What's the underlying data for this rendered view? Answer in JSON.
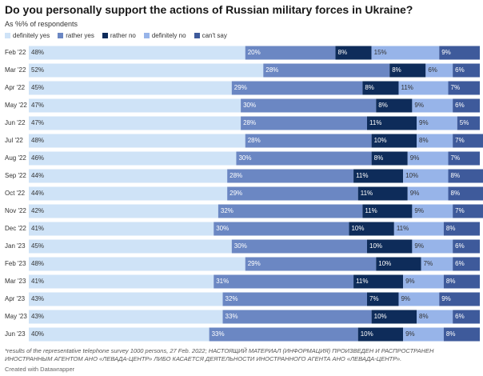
{
  "chart_data": {
    "type": "stacked-bar-horizontal",
    "title": "Do you personally support the actions of Russian military forces in Ukraine?",
    "subtitle": "As %% of respondents",
    "categories": [
      "Feb '22",
      "Mar '22",
      "Apr '22",
      "May '22",
      "Jun '22",
      "Jul '22",
      "Aug '22",
      "Sep '22",
      "Oct '22",
      "Nov '22",
      "Dec '22",
      "Jan '23",
      "Feb '23",
      "Mar '23",
      "Apr '23",
      "May '23",
      "Jun '23"
    ],
    "xlim": [
      0,
      100
    ],
    "series": [
      {
        "name": "definitely yes",
        "color": "#cfe3f7",
        "text_color": "#333333",
        "values": [
          48,
          52,
          45,
          47,
          47,
          48,
          46,
          44,
          44,
          42,
          41,
          45,
          48,
          41,
          43,
          43,
          40
        ],
        "value_labels": [
          "48%",
          "52%",
          "45%",
          "47%",
          "47%",
          "48%",
          "46%",
          "44%",
          "44%",
          "42%",
          "41%",
          "45%",
          "48%",
          "41%",
          "43%",
          "43%",
          "40%"
        ]
      },
      {
        "name": "rather yes",
        "color": "#6b87c3",
        "text_color": "#ffffff",
        "values": [
          20,
          28,
          29,
          30,
          28,
          28,
          30,
          28,
          29,
          32,
          30,
          30,
          29,
          31,
          32,
          33,
          33
        ],
        "value_labels": [
          "20%",
          "28%",
          "29%",
          "30%",
          "28%",
          "28%",
          "30%",
          "28%",
          "29%",
          "32%",
          "30%",
          "30%",
          "29%",
          "31%",
          "32%",
          "33%",
          "33%"
        ]
      },
      {
        "name": "rather no",
        "color": "#0e2c5a",
        "text_color": "#ffffff",
        "values": [
          8,
          8,
          8,
          8,
          11,
          10,
          8,
          11,
          11,
          11,
          10,
          10,
          10,
          11,
          7,
          10,
          10
        ],
        "value_labels": [
          "8%",
          "8%",
          "8%",
          "8%",
          "11%",
          "10%",
          "8%",
          "11%",
          "11%",
          "11%",
          "10%",
          "10%",
          "10%",
          "11%",
          "7%",
          "10%",
          "10%"
        ]
      },
      {
        "name": "definitely no",
        "color": "#97b4e9",
        "text_color": "#333333",
        "values": [
          15,
          6,
          11,
          9,
          9,
          8,
          9,
          10,
          9,
          9,
          11,
          9,
          7,
          9,
          9,
          8,
          9
        ],
        "value_labels": [
          "15%",
          "6%",
          "11%",
          "9%",
          "9%",
          "8%",
          "9%",
          "10%",
          "9%",
          "9%",
          "11%",
          "9%",
          "7%",
          "9%",
          "9%",
          "8%",
          "9%"
        ]
      },
      {
        "name": "can't say",
        "color": "#3e5a9b",
        "text_color": "#ffffff",
        "values": [
          9,
          6,
          7,
          6,
          5,
          7,
          7,
          8,
          8,
          7,
          8,
          6,
          6,
          8,
          9,
          6,
          8
        ],
        "value_labels": [
          "9%",
          "6%",
          "7%",
          "6%",
          "5%",
          "7%",
          "7%",
          "8%",
          "8%",
          "7%",
          "8%",
          "6%",
          "6%",
          "8%",
          "9%",
          "6%",
          "8%"
        ]
      }
    ],
    "note": "*results of the representative telephone survey 1000 persons, 27 Feb. 2022; НАСТОЯЩИЙ МАТЕРИАЛ (ИНФОРМАЦИЯ) ПРОИЗВЕДЕН И РАСПРОСТРАНЕН ИНОСТРАННЫМ АГЕНТОМ АНО «ЛЕВАДА-ЦЕНТР» ЛИБО КАСАЕТСЯ ДЕЯТЕЛЬНОСТИ ИНОСТРАННОГО АГЕНТА АНО «ЛЕВАДА-ЦЕНТР».",
    "credit": "Created with Datawrapper"
  }
}
